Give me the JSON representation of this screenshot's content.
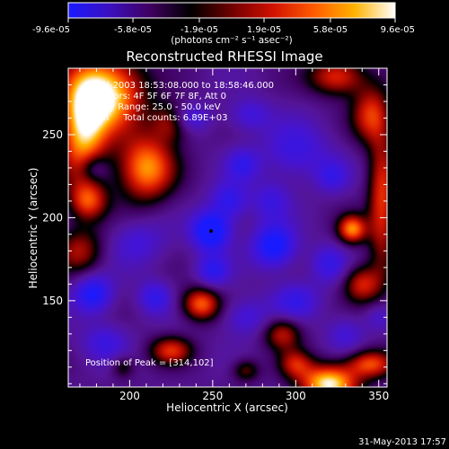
{
  "chart_data": {
    "type": "heatmap",
    "title": "Reconstructed RHESSI Image",
    "xlabel": "Heliocentric X (arcsec)",
    "ylabel": "Heliocentric Y (arcsec)",
    "xlim": [
      163,
      355
    ],
    "ylim": [
      98,
      290
    ],
    "x_ticks": [
      200,
      250,
      300,
      350
    ],
    "y_ticks": [
      150,
      200,
      250
    ],
    "colorbar": {
      "ticks": [
        -9.6e-05,
        -5.8e-05,
        -1.9e-05,
        1.9e-05,
        5.8e-05,
        9.6e-05
      ],
      "tick_labels": [
        "-9.6e-05",
        "-5.8e-05",
        "-1.9e-05",
        "1.9e-05",
        "5.8e-05",
        "9.6e-05"
      ],
      "unit_label": "(photons cm⁻² s⁻¹ asec⁻²)",
      "colors": [
        "#1a1aff",
        "#3a10c0",
        "#400060",
        "#000000",
        "#700000",
        "#d01000",
        "#ff5a00",
        "#ffb200",
        "#ffffff"
      ]
    },
    "annotations": [
      "19-Jul-2003 18:53:08.000 to 18:58:46.000",
      "Detectors: 4F 5F 6F 7F 8F, Att 0",
      "Energy Range: 25.0 - 50.0 keV",
      "Clean     Total counts: 6.89E+03"
    ],
    "peak_label": "Position of Peak = [314,102]",
    "peak_marker": {
      "x": 249,
      "y": 192
    },
    "sources": [
      {
        "x": 185,
        "y": 275,
        "sx": 16,
        "sy": 16,
        "a": 1.0
      },
      {
        "x": 172,
        "y": 250,
        "sx": 10,
        "sy": 22,
        "a": 0.8
      },
      {
        "x": 210,
        "y": 230,
        "sx": 12,
        "sy": 14,
        "a": 0.8
      },
      {
        "x": 225,
        "y": 258,
        "sx": 8,
        "sy": 8,
        "a": 0.5
      },
      {
        "x": 175,
        "y": 210,
        "sx": 8,
        "sy": 8,
        "a": 0.55
      },
      {
        "x": 170,
        "y": 180,
        "sx": 10,
        "sy": 10,
        "a": 0.45
      },
      {
        "x": 325,
        "y": 285,
        "sx": 12,
        "sy": 8,
        "a": 0.6
      },
      {
        "x": 345,
        "y": 262,
        "sx": 8,
        "sy": 12,
        "a": 0.55
      },
      {
        "x": 352,
        "y": 210,
        "sx": 6,
        "sy": 30,
        "a": 0.6
      },
      {
        "x": 334,
        "y": 193,
        "sx": 6,
        "sy": 6,
        "a": 0.75
      },
      {
        "x": 340,
        "y": 160,
        "sx": 8,
        "sy": 8,
        "a": 0.55
      },
      {
        "x": 320,
        "y": 100,
        "sx": 12,
        "sy": 8,
        "a": 1.0
      },
      {
        "x": 345,
        "y": 112,
        "sx": 10,
        "sy": 6,
        "a": 0.65
      },
      {
        "x": 292,
        "y": 130,
        "sx": 8,
        "sy": 7,
        "a": 0.5
      },
      {
        "x": 300,
        "y": 112,
        "sx": 7,
        "sy": 6,
        "a": 0.45
      },
      {
        "x": 243,
        "y": 148,
        "sx": 8,
        "sy": 7,
        "a": 0.7
      },
      {
        "x": 225,
        "y": 120,
        "sx": 9,
        "sy": 6,
        "a": 0.55
      },
      {
        "x": 270,
        "y": 108,
        "sx": 6,
        "sy": 5,
        "a": 0.35
      },
      {
        "x": 196,
        "y": 110,
        "sx": 5,
        "sy": 5,
        "a": 0.3
      },
      {
        "x": 249,
        "y": 192,
        "sx": 8,
        "sy": 8,
        "a": -1.0
      },
      {
        "x": 287,
        "y": 183,
        "sx": 9,
        "sy": 9,
        "a": -0.85
      },
      {
        "x": 178,
        "y": 154,
        "sx": 8,
        "sy": 8,
        "a": -0.75
      },
      {
        "x": 235,
        "y": 260,
        "sx": 9,
        "sy": 6,
        "a": -0.5
      },
      {
        "x": 260,
        "y": 210,
        "sx": 8,
        "sy": 8,
        "a": -0.55
      },
      {
        "x": 215,
        "y": 152,
        "sx": 7,
        "sy": 7,
        "a": -0.5
      },
      {
        "x": 250,
        "y": 168,
        "sx": 7,
        "sy": 7,
        "a": -0.55
      },
      {
        "x": 300,
        "y": 240,
        "sx": 14,
        "sy": 12,
        "a": -0.45
      },
      {
        "x": 320,
        "y": 172,
        "sx": 8,
        "sy": 8,
        "a": -0.45
      },
      {
        "x": 300,
        "y": 150,
        "sx": 10,
        "sy": 8,
        "a": -0.45
      },
      {
        "x": 285,
        "y": 210,
        "sx": 8,
        "sy": 8,
        "a": -0.4
      },
      {
        "x": 322,
        "y": 225,
        "sx": 7,
        "sy": 7,
        "a": -0.4
      },
      {
        "x": 205,
        "y": 185,
        "sx": 12,
        "sy": 10,
        "a": -0.35
      },
      {
        "x": 270,
        "y": 140,
        "sx": 10,
        "sy": 8,
        "a": -0.4
      },
      {
        "x": 185,
        "y": 125,
        "sx": 10,
        "sy": 8,
        "a": -0.4
      },
      {
        "x": 330,
        "y": 130,
        "sx": 8,
        "sy": 8,
        "a": -0.35
      },
      {
        "x": 350,
        "y": 140,
        "sx": 6,
        "sy": 6,
        "a": -0.3
      },
      {
        "x": 272,
        "y": 262,
        "sx": 9,
        "sy": 7,
        "a": -0.4
      },
      {
        "x": 268,
        "y": 232,
        "sx": 7,
        "sy": 7,
        "a": -0.45
      },
      {
        "x": 178,
        "y": 230,
        "sx": 6,
        "sy": 6,
        "a": -0.45
      }
    ]
  },
  "footer": {
    "timestamp": "31-May-2013 17:57"
  }
}
